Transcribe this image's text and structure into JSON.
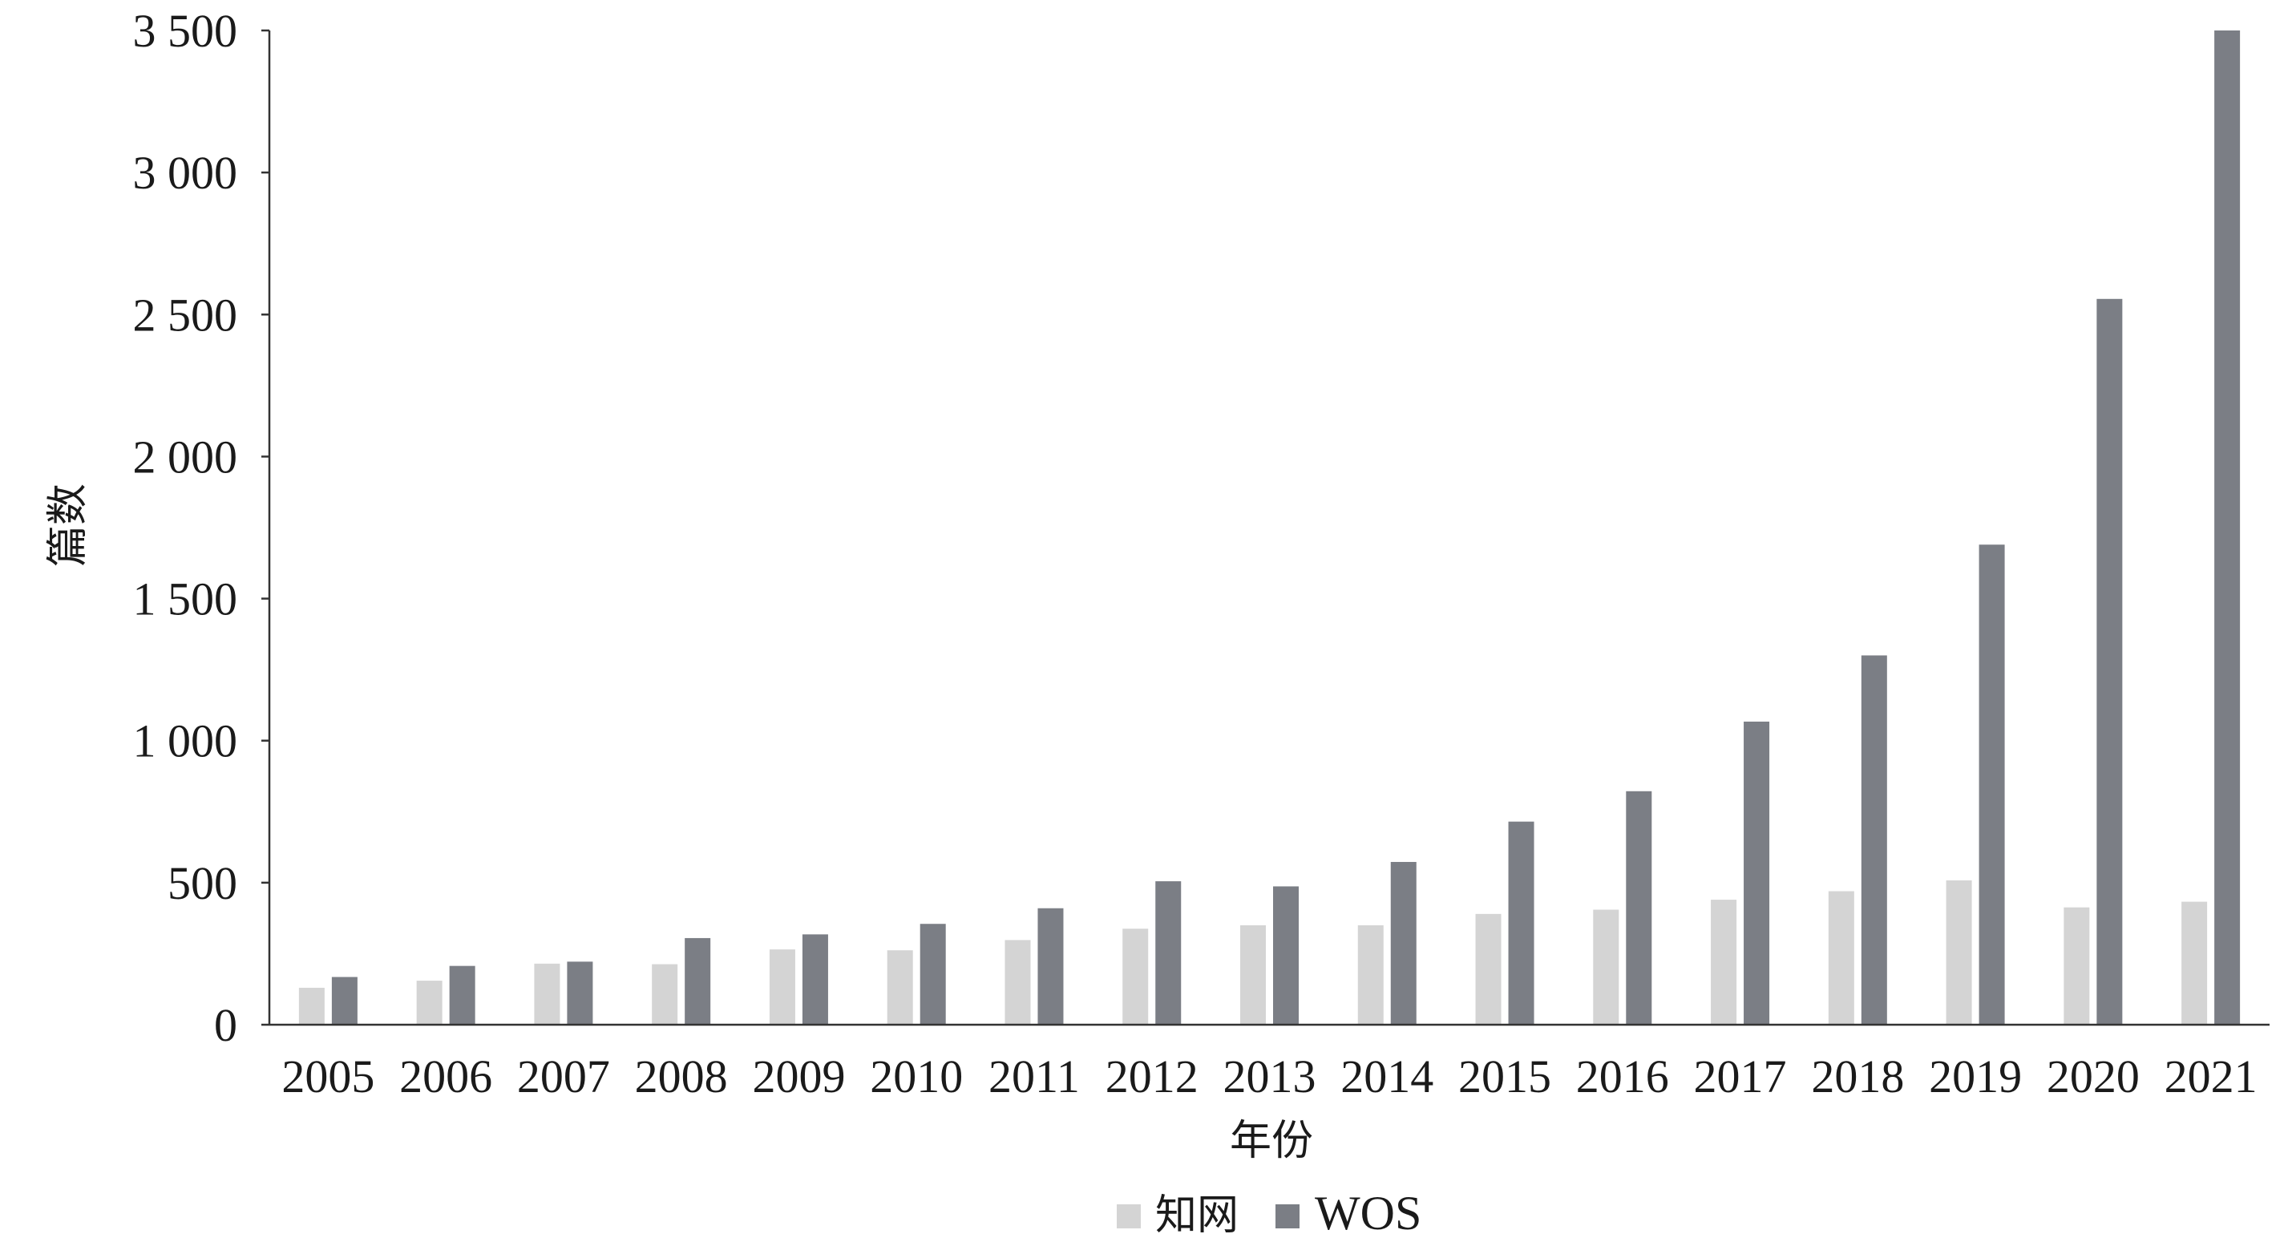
{
  "chart_data": {
    "type": "bar",
    "title": "",
    "xlabel": "年份",
    "ylabel": "篇数",
    "ylim": [
      0,
      3500
    ],
    "yticks": [
      0,
      500,
      1000,
      1500,
      2000,
      2500,
      3000,
      3500
    ],
    "ytick_labels": [
      "0",
      "500",
      "1 000",
      "1 500",
      "2 000",
      "2 500",
      "3 000",
      "3 500"
    ],
    "categories": [
      "2005",
      "2006",
      "2007",
      "2008",
      "2009",
      "2010",
      "2011",
      "2012",
      "2013",
      "2014",
      "2015",
      "2016",
      "2017",
      "2018",
      "2019",
      "2020",
      "2021"
    ],
    "series": [
      {
        "name": "知网",
        "color": "#d4d4d4",
        "values": [
          130,
          155,
          215,
          213,
          265,
          262,
          298,
          338,
          350,
          350,
          390,
          405,
          440,
          470,
          508,
          413,
          433
        ]
      },
      {
        "name": "WOS",
        "color": "#7b7e85",
        "values": [
          168,
          207,
          222,
          305,
          318,
          355,
          410,
          505,
          487,
          573,
          715,
          822,
          1067,
          1300,
          1690,
          2555,
          3500
        ]
      }
    ],
    "grid": false,
    "legend": "bottom-center"
  }
}
